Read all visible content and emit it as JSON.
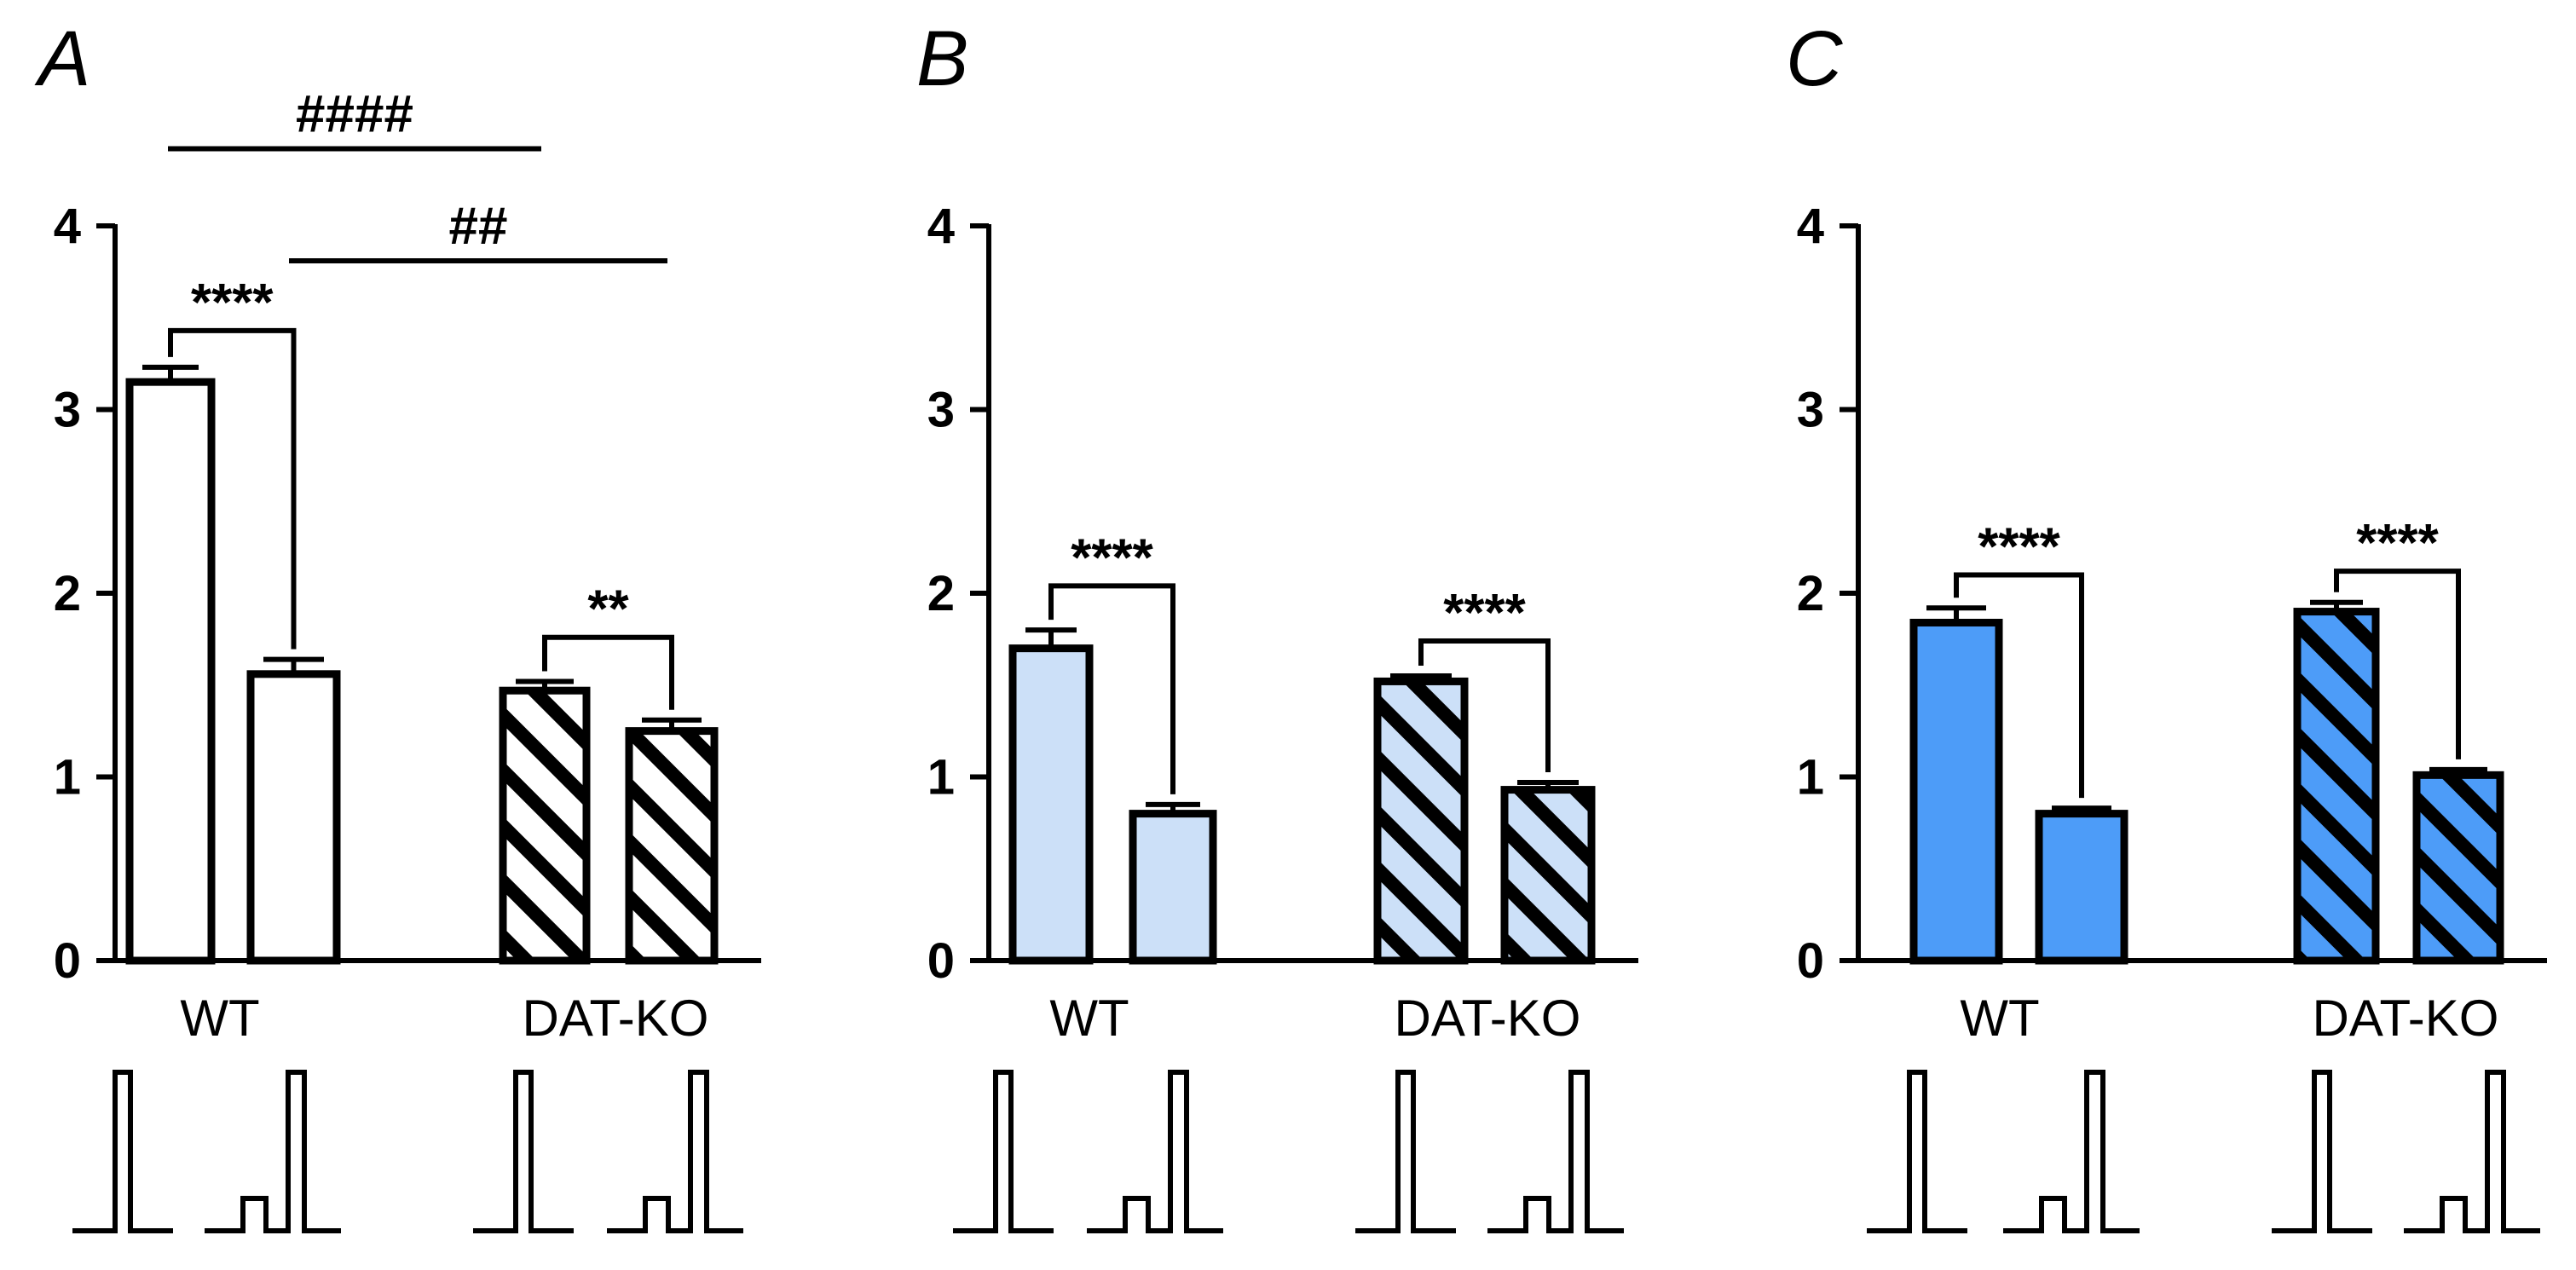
{
  "colors": {
    "axis": "#000000",
    "panel_A_fill": "#ffffff",
    "panel_B_fill": "#cce0f8",
    "panel_C_fill": "#4d9cf8"
  },
  "chart_data": [
    {
      "panel": "A",
      "type": "bar",
      "groups": [
        "WT",
        "DAT-KO"
      ],
      "bars": [
        {
          "group": "WT",
          "pattern": "solid",
          "value": 3.15,
          "error": 0.08
        },
        {
          "group": "WT",
          "pattern": "solid",
          "value": 1.56,
          "error": 0.08
        },
        {
          "group": "DAT-KO",
          "pattern": "hatched",
          "value": 1.47,
          "error": 0.05
        },
        {
          "group": "DAT-KO",
          "pattern": "hatched",
          "value": 1.25,
          "error": 0.06
        }
      ],
      "y_ticks": [
        "0",
        "1",
        "2",
        "3",
        "4"
      ],
      "ylim": [
        0,
        4
      ],
      "within_group_stats": [
        {
          "between": [
            0,
            1
          ],
          "label": "****",
          "y": 3.43
        },
        {
          "between": [
            2,
            3
          ],
          "label": "**",
          "y": 1.76
        }
      ],
      "between_group_stats": [
        {
          "between": [
            0,
            2
          ],
          "label": "####",
          "y": 4.42
        },
        {
          "between": [
            1,
            3
          ],
          "label": "##",
          "y": 3.81
        }
      ],
      "stimuli": [
        "single-pulse",
        "prepulse-pulse",
        "single-pulse",
        "prepulse-pulse"
      ]
    },
    {
      "panel": "B",
      "type": "bar",
      "groups": [
        "WT",
        "DAT-KO"
      ],
      "bars": [
        {
          "group": "WT",
          "pattern": "solid",
          "value": 1.7,
          "error": 0.1
        },
        {
          "group": "WT",
          "pattern": "solid",
          "value": 0.8,
          "error": 0.05
        },
        {
          "group": "DAT-KO",
          "pattern": "hatched",
          "value": 1.52,
          "error": 0.03
        },
        {
          "group": "DAT-KO",
          "pattern": "hatched",
          "value": 0.93,
          "error": 0.04
        }
      ],
      "y_ticks": [
        "0",
        "1",
        "2",
        "3",
        "4"
      ],
      "ylim": [
        0,
        4
      ],
      "within_group_stats": [
        {
          "between": [
            0,
            1
          ],
          "label": "****",
          "y": 2.04
        },
        {
          "between": [
            2,
            3
          ],
          "label": "****",
          "y": 1.74
        }
      ],
      "between_group_stats": [],
      "stimuli": [
        "single-pulse",
        "prepulse-pulse",
        "single-pulse",
        "prepulse-pulse"
      ]
    },
    {
      "panel": "C",
      "type": "bar",
      "groups": [
        "WT",
        "DAT-KO"
      ],
      "bars": [
        {
          "group": "WT",
          "pattern": "solid",
          "value": 1.84,
          "error": 0.08
        },
        {
          "group": "WT",
          "pattern": "solid",
          "value": 0.8,
          "error": 0.03
        },
        {
          "group": "DAT-KO",
          "pattern": "hatched",
          "value": 1.9,
          "error": 0.05
        },
        {
          "group": "DAT-KO",
          "pattern": "hatched",
          "value": 1.01,
          "error": 0.03
        }
      ],
      "y_ticks": [
        "0",
        "1",
        "2",
        "3",
        "4"
      ],
      "ylim": [
        0,
        4
      ],
      "within_group_stats": [
        {
          "between": [
            0,
            1
          ],
          "label": "****",
          "y": 2.1
        },
        {
          "between": [
            2,
            3
          ],
          "label": "****",
          "y": 2.12
        }
      ],
      "between_group_stats": [],
      "stimuli": [
        "single-pulse",
        "prepulse-pulse",
        "single-pulse",
        "prepulse-pulse"
      ]
    }
  ]
}
